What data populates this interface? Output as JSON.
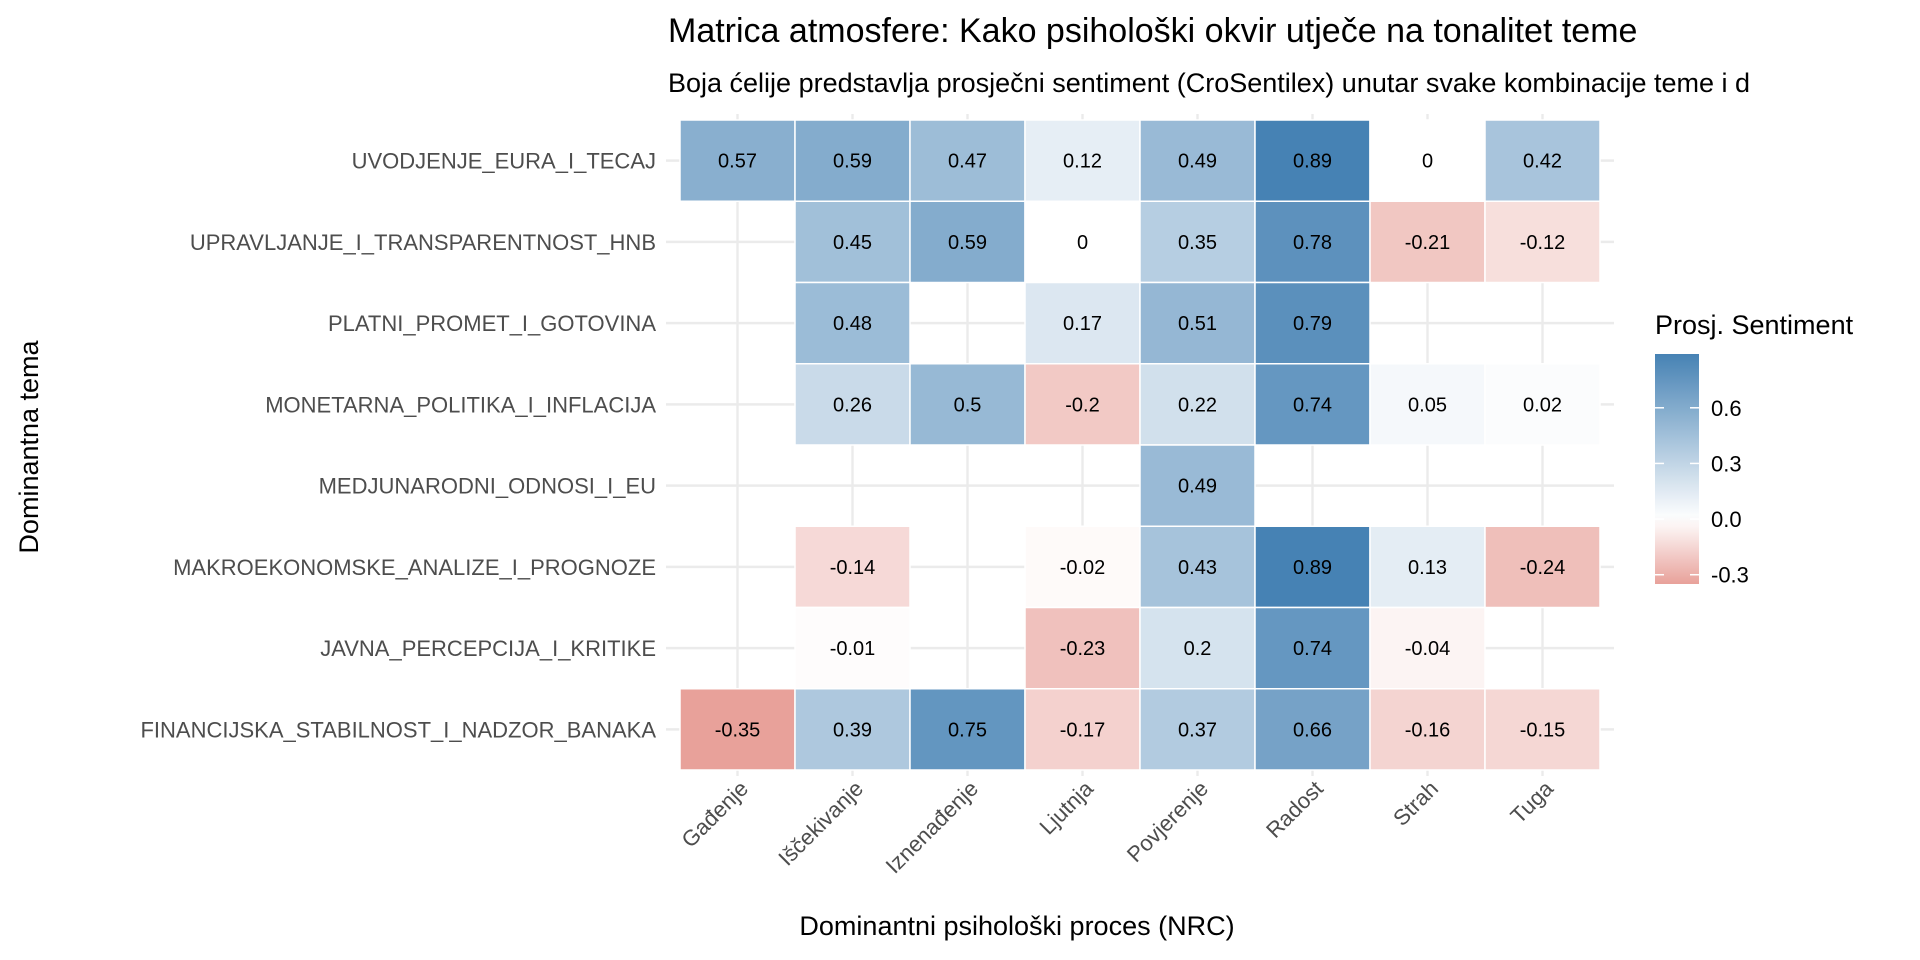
{
  "chart_data": {
    "type": "heatmap",
    "title": "Matrica atmosfere: Kako psihološki okvir utječe na tonalitet teme",
    "subtitle": "Boja ćelije predstavlja prosječni sentiment (CroSentilex) unutar svake kombinacije teme i d",
    "xlabel": "Dominantni psihološki proces (NRC)",
    "ylabel": "Dominantna tema",
    "x_categories": [
      "Gađenje",
      "Iščekivanje",
      "Iznenađenje",
      "Ljutnja",
      "Povjerenje",
      "Radost",
      "Strah",
      "Tuga"
    ],
    "y_categories": [
      "UVODJENJE_EURA_I_TECAJ",
      "UPRAVLJANJE_I_TRANSPARENTNOST_HNB",
      "PLATNI_PROMET_I_GOTOVINA",
      "MONETARNA_POLITIKA_I_INFLACIJA",
      "MEDJUNARODNI_ODNOSI_I_EU",
      "MAKROEKONOMSKE_ANALIZE_I_PROGNOZE",
      "JAVNA_PERCEPCIJA_I_KRITIKE",
      "FINANCIJSKA_STABILNOST_I_NADZOR_BANAKA"
    ],
    "values": [
      [
        0.57,
        0.59,
        0.47,
        0.12,
        0.49,
        0.89,
        0,
        0.42
      ],
      [
        null,
        0.45,
        0.59,
        0,
        0.35,
        0.78,
        -0.21,
        -0.12
      ],
      [
        null,
        0.48,
        null,
        0.17,
        0.51,
        0.79,
        null,
        null
      ],
      [
        null,
        0.26,
        0.5,
        -0.2,
        0.22,
        0.74,
        0.05,
        0.02
      ],
      [
        null,
        null,
        null,
        null,
        0.49,
        null,
        null,
        null
      ],
      [
        null,
        -0.14,
        null,
        -0.02,
        0.43,
        0.89,
        0.13,
        -0.24
      ],
      [
        null,
        -0.01,
        null,
        -0.23,
        0.2,
        0.74,
        -0.04,
        null
      ],
      [
        -0.35,
        0.39,
        0.75,
        -0.17,
        0.37,
        0.66,
        -0.16,
        -0.15
      ]
    ],
    "legend": {
      "title": "Prosj. Sentiment",
      "ticks": [
        0.6,
        0.3,
        0.0,
        -0.3
      ],
      "tick_labels": [
        "0.6",
        "0.3",
        "0.0",
        "-0.3"
      ],
      "range": [
        -0.35,
        0.89
      ],
      "placement": "right"
    },
    "colors": {
      "low": "#e8a19a",
      "mid": "#ffffff",
      "high": "#4682b4"
    },
    "grid": true
  }
}
